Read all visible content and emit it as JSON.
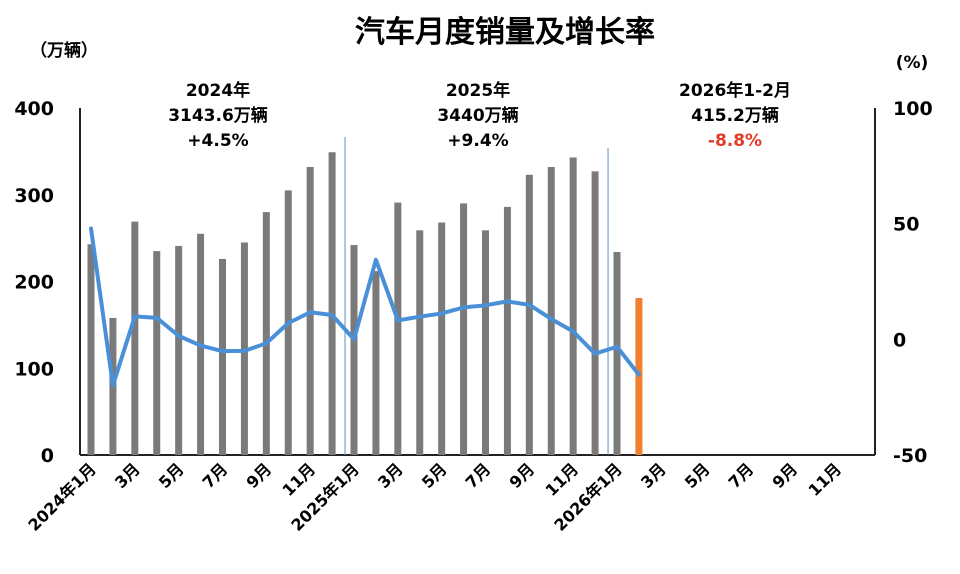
{
  "chart_data": {
    "type": "bar",
    "title": "汽车月度销量及增长率",
    "y_left_unit": "（万辆）",
    "y_right_unit": "(%)",
    "ylim_left": [
      0,
      400
    ],
    "ylim_right": [
      -50,
      100
    ],
    "y_left_ticks": [
      "0",
      "100",
      "200",
      "300",
      "400"
    ],
    "y_right_ticks": [
      "-50",
      "0",
      "50",
      "100"
    ],
    "x_ticks": [
      "2024年1月",
      "3月",
      "5月",
      "7月",
      "9月",
      "11月",
      "2025年1月",
      "3月",
      "5月",
      "7月",
      "9月",
      "11月",
      "2026年1月",
      "3月",
      "5月",
      "7月",
      "9月",
      "11月"
    ],
    "months": [
      "2024-01",
      "2024-02",
      "2024-03",
      "2024-04",
      "2024-05",
      "2024-06",
      "2024-07",
      "2024-08",
      "2024-09",
      "2024-10",
      "2024-11",
      "2024-12",
      "2025-01",
      "2025-02",
      "2025-03",
      "2025-04",
      "2025-05",
      "2025-06",
      "2025-07",
      "2025-08",
      "2025-09",
      "2025-10",
      "2025-11",
      "2025-12",
      "2026-01",
      "2026-02"
    ],
    "series": [
      {
        "type": "bar",
        "values": [
          243,
          158,
          269,
          235,
          241,
          255,
          226,
          245,
          280,
          305,
          332,
          349,
          242,
          212,
          291,
          259,
          268,
          290,
          259,
          286,
          323,
          332,
          343,
          327,
          234,
          181
        ]
      },
      {
        "type": "line",
        "axis": "right",
        "values": [
          47.9,
          -19.9,
          9.9,
          9.3,
          1.5,
          -2.7,
          -5.1,
          -5.0,
          -1.7,
          7.0,
          11.7,
          10.5,
          0,
          34.4,
          8.2,
          9.8,
          11.2,
          13.8,
          14.7,
          16.4,
          14.9,
          8.8,
          3.4,
          -6.2,
          -3.2,
          -15.3
        ]
      }
    ],
    "highlight_bar_color": "#f07f2e",
    "bar_color": "#7a7a7a",
    "line_color": "#4a90d9",
    "annotations": [
      {
        "label": "2024年",
        "total": "3143.6万辆",
        "growth": "+4.5%"
      },
      {
        "label": "2025年",
        "total": "3440万辆",
        "growth": "+9.4%"
      },
      {
        "label": "2026年1-2月",
        "total": "415.2万辆",
        "growth": "-8.8%"
      }
    ]
  }
}
